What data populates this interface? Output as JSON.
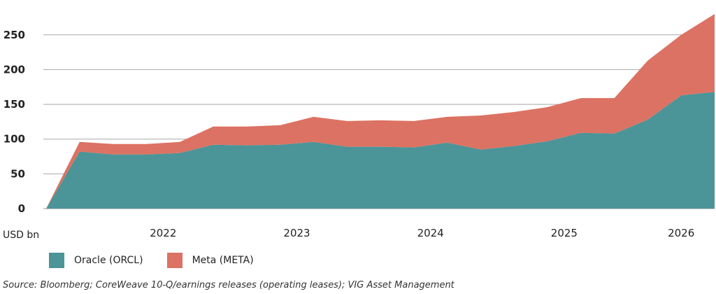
{
  "chart_data": {
    "type": "area",
    "stacked": true,
    "unit_label": "USD bn",
    "x_tick_labels": [
      "2022",
      "2023",
      "2024",
      "2025",
      "2026"
    ],
    "x": [
      "2021Q3",
      "2021Q4",
      "2022Q1",
      "2022Q2",
      "2022Q3",
      "2022Q4",
      "2023Q1",
      "2023Q2",
      "2023Q3",
      "2023Q4",
      "2024Q1",
      "2024Q2",
      "2024Q3",
      "2024Q4",
      "2025Q1",
      "2025Q2",
      "2025Q3",
      "2025Q4",
      "2026Q1",
      "2026Q2",
      "2026Q3"
    ],
    "series": [
      {
        "name": "Oracle (ORCL)",
        "color": "#4b9498",
        "values": [
          0,
          82,
          78,
          78,
          80,
          92,
          91,
          92,
          96,
          89,
          89,
          88,
          95,
          85,
          90,
          97,
          109,
          108,
          128,
          163,
          168
        ]
      },
      {
        "name": "Meta (META)",
        "color": "#dc7263",
        "values": [
          0,
          14,
          15,
          15,
          16,
          26,
          27,
          28,
          36,
          37,
          38,
          38,
          37,
          49,
          49,
          49,
          50,
          51,
          85,
          87,
          112
        ]
      }
    ],
    "ylim": [
      0,
      280
    ],
    "yticks": [
      0,
      50,
      100,
      150,
      200,
      250
    ],
    "grid": true,
    "legend_position": "bottom-left"
  },
  "source": "Source: Bloomberg; CoreWeave 10-Q/earnings releases (operating leases); VIG Asset Management"
}
